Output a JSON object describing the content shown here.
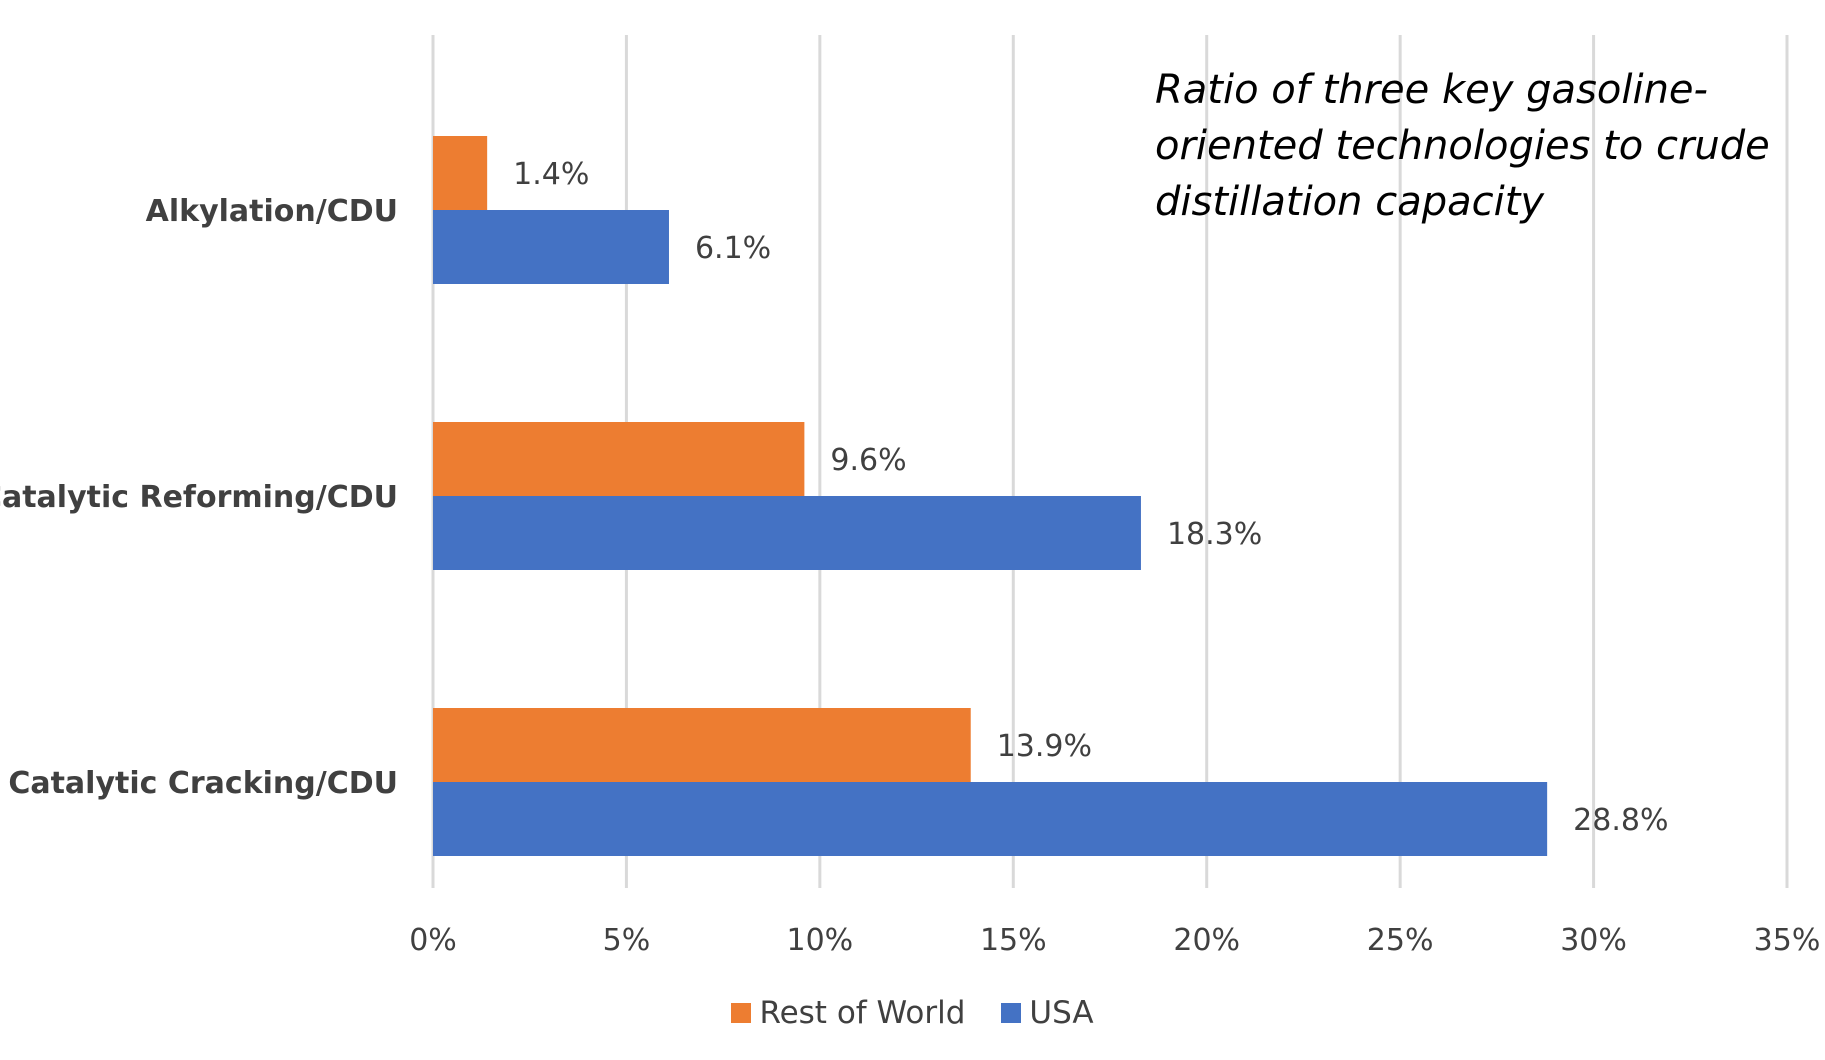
{
  "chart_data": {
    "type": "bar",
    "orientation": "horizontal",
    "title": "Ratio of three key gasoline-oriented technologies to crude distillation capacity",
    "categories": [
      "Alkylation/CDU",
      "Catalytic Reforming/CDU",
      "Catalytic Cracking/CDU"
    ],
    "series": [
      {
        "name": "Rest of World",
        "color": "#ED7D31",
        "values": [
          1.4,
          9.6,
          13.9
        ],
        "labels": [
          "1.4%",
          "9.6%",
          "13.9%"
        ]
      },
      {
        "name": "USA",
        "color": "#4472C4",
        "values": [
          6.1,
          18.3,
          28.8
        ],
        "labels": [
          "6.1%",
          "18.3%",
          "28.8%"
        ]
      }
    ],
    "xlim": [
      0,
      35
    ],
    "xticks": [
      0,
      5,
      10,
      15,
      20,
      25,
      30,
      35
    ],
    "xtick_labels": [
      "0%",
      "5%",
      "10%",
      "15%",
      "20%",
      "25%",
      "30%",
      "35%"
    ],
    "xlabel": "",
    "ylabel": "",
    "grid": true,
    "legend_position": "bottom-center"
  }
}
